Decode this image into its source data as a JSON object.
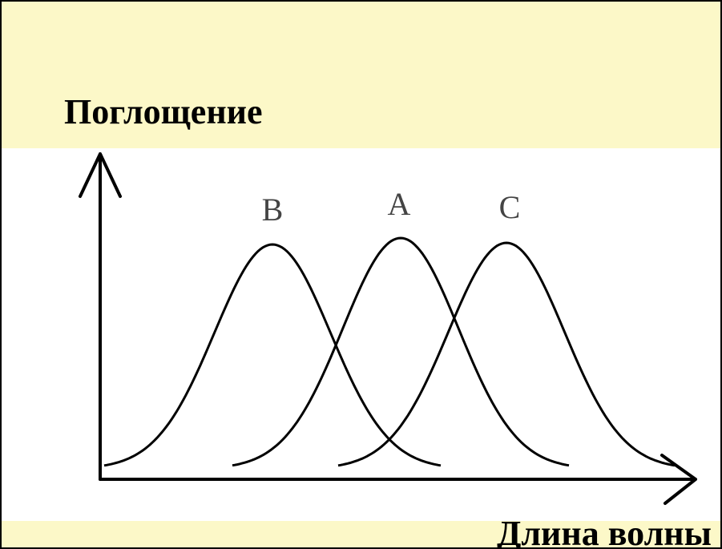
{
  "axes": {
    "y_label": "Поглощение",
    "x_label": "Длина волны"
  },
  "curves": [
    {
      "label": "B"
    },
    {
      "label": "A"
    },
    {
      "label": "C"
    }
  ]
}
